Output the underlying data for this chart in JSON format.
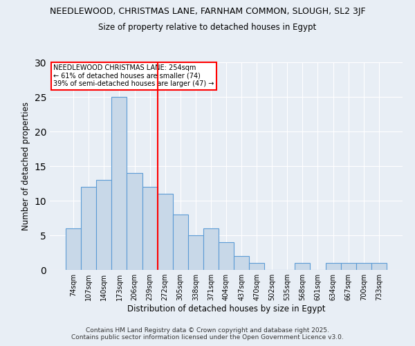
{
  "title_line1": "NEEDLEWOOD, CHRISTMAS LANE, FARNHAM COMMON, SLOUGH, SL2 3JF",
  "title_line2": "Size of property relative to detached houses in Egypt",
  "xlabel": "Distribution of detached houses by size in Egypt",
  "ylabel": "Number of detached properties",
  "bar_labels": [
    "74sqm",
    "107sqm",
    "140sqm",
    "173sqm",
    "206sqm",
    "239sqm",
    "272sqm",
    "305sqm",
    "338sqm",
    "371sqm",
    "404sqm",
    "437sqm",
    "470sqm",
    "502sqm",
    "535sqm",
    "568sqm",
    "601sqm",
    "634sqm",
    "667sqm",
    "700sqm",
    "733sqm"
  ],
  "bar_values": [
    6,
    12,
    13,
    25,
    14,
    12,
    11,
    8,
    5,
    6,
    4,
    2,
    1,
    0,
    0,
    1,
    0,
    1,
    1,
    1,
    1
  ],
  "bar_color": "#c8d8e8",
  "bar_edge_color": "#5b9bd5",
  "vline_x": 5.5,
  "vline_color": "red",
  "annotation_text": "NEEDLEWOOD CHRISTMAS LANE: 254sqm\n← 61% of detached houses are smaller (74)\n39% of semi-detached houses are larger (47) →",
  "annotation_box_color": "white",
  "annotation_box_edge_color": "red",
  "ylim": [
    0,
    30
  ],
  "yticks": [
    0,
    5,
    10,
    15,
    20,
    25,
    30
  ],
  "background_color": "#e8eef5",
  "footer_line1": "Contains HM Land Registry data © Crown copyright and database right 2025.",
  "footer_line2": "Contains public sector information licensed under the Open Government Licence v3.0."
}
